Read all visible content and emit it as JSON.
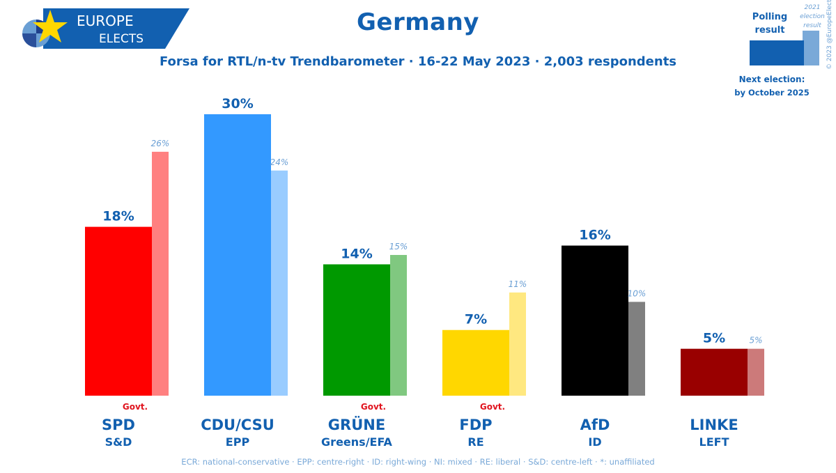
{
  "logo": {
    "line1": "EUROPE",
    "line2": "ELECTS"
  },
  "title": "Germany",
  "subtitle": "Forsa for RTL/n-tv Trendbarometer · 16-22 May 2023 · 2,003 respondents",
  "legend": {
    "polling_label_1": "Polling",
    "polling_label_2": "result",
    "prev_label_1": "2021",
    "prev_label_2": "election",
    "prev_label_3": "result",
    "next_election_1": "Next election:",
    "next_election_2": "by October 2025",
    "colors": {
      "poll": "#1260b0",
      "prev": "#7aa9d8"
    }
  },
  "copyright": "© 2023 @EuropeElects",
  "footer": "ECR: national-conservative · EPP: centre-right · ID: right-wing · NI: mixed · RE: liberal · S&D: centre-left · *: unaffiliated",
  "chart_data": {
    "type": "bar",
    "ylim": [
      0,
      30
    ],
    "categories": [
      "SPD",
      "CDU/CSU",
      "GRÜNE",
      "FDP",
      "AfD",
      "LINKE"
    ],
    "groups": [
      "S&D",
      "EPP",
      "Greens/EFA",
      "RE",
      "ID",
      "LEFT"
    ],
    "govt": [
      "Govt.",
      "",
      "Govt.",
      "Govt.",
      "",
      ""
    ],
    "series": [
      {
        "name": "Polling result",
        "values": [
          18,
          30,
          14,
          7,
          16,
          5
        ],
        "labels": [
          "18%",
          "30%",
          "14%",
          "7%",
          "16%",
          "5%"
        ]
      },
      {
        "name": "2021 election result",
        "values": [
          26,
          24,
          15,
          11,
          10,
          5
        ],
        "labels": [
          "26%",
          "24%",
          "15%",
          "11%",
          "10%",
          "5%"
        ]
      }
    ],
    "colors": {
      "poll": [
        "#ff0000",
        "#3399ff",
        "#009900",
        "#ffd700",
        "#000000",
        "#990000"
      ],
      "prev": [
        "#ff8080",
        "#99ccff",
        "#80c880",
        "#ffe880",
        "#808080",
        "#cc7a7a"
      ]
    }
  }
}
